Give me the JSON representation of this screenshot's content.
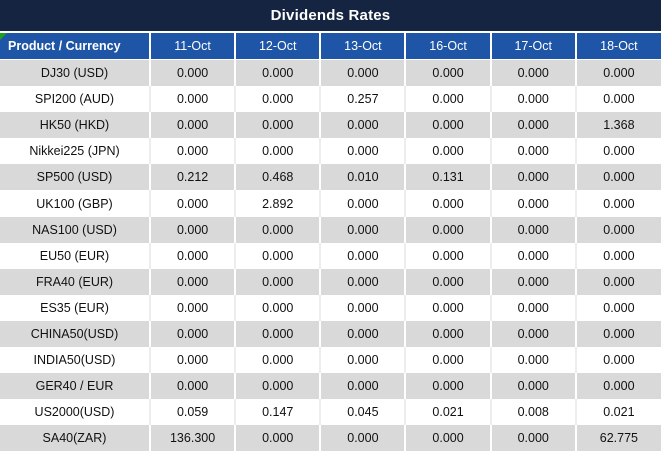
{
  "title": "Dividends Rates",
  "icons": {
    "corner_marker": "green-corner-triangle"
  },
  "colors": {
    "title_bg": "#142441",
    "header_bg": "#1e55a6",
    "alt_row_bg": "#d9d9d9",
    "highlight_red": "#f40000",
    "marker_green": "#1fa11f"
  },
  "table": {
    "header": [
      "Product / Currency",
      "11-Oct",
      "12-Oct",
      "13-Oct",
      "16-Oct",
      "17-Oct",
      "18-Oct"
    ],
    "rows": [
      {
        "product": "DJ30 (USD)",
        "values": [
          "0.000",
          "0.000",
          "0.000",
          "0.000",
          "0.000",
          "0.000"
        ],
        "red": [
          false,
          false,
          false,
          false,
          false,
          false
        ]
      },
      {
        "product": "SPI200 (AUD)",
        "values": [
          "0.000",
          "0.000",
          "0.257",
          "0.000",
          "0.000",
          "0.000"
        ],
        "red": [
          false,
          false,
          true,
          false,
          false,
          false
        ]
      },
      {
        "product": "HK50 (HKD)",
        "values": [
          "0.000",
          "0.000",
          "0.000",
          "0.000",
          "0.000",
          "1.368"
        ],
        "red": [
          false,
          false,
          false,
          false,
          false,
          true
        ]
      },
      {
        "product": "Nikkei225 (JPN)",
        "values": [
          "0.000",
          "0.000",
          "0.000",
          "0.000",
          "0.000",
          "0.000"
        ],
        "red": [
          false,
          false,
          false,
          false,
          false,
          false
        ]
      },
      {
        "product": "SP500 (USD)",
        "values": [
          "0.212",
          "0.468",
          "0.010",
          "0.131",
          "0.000",
          "0.000"
        ],
        "red": [
          true,
          true,
          true,
          true,
          false,
          false
        ]
      },
      {
        "product": "UK100 (GBP)",
        "values": [
          "0.000",
          "2.892",
          "0.000",
          "0.000",
          "0.000",
          "0.000"
        ],
        "red": [
          false,
          true,
          false,
          false,
          false,
          false
        ]
      },
      {
        "product": "NAS100 (USD)",
        "values": [
          "0.000",
          "0.000",
          "0.000",
          "0.000",
          "0.000",
          "0.000"
        ],
        "red": [
          false,
          false,
          false,
          false,
          false,
          false
        ]
      },
      {
        "product": "EU50 (EUR)",
        "values": [
          "0.000",
          "0.000",
          "0.000",
          "0.000",
          "0.000",
          "0.000"
        ],
        "red": [
          false,
          false,
          false,
          false,
          false,
          false
        ]
      },
      {
        "product": "FRA40 (EUR)",
        "values": [
          "0.000",
          "0.000",
          "0.000",
          "0.000",
          "0.000",
          "0.000"
        ],
        "red": [
          false,
          false,
          false,
          false,
          false,
          false
        ]
      },
      {
        "product": "ES35 (EUR)",
        "values": [
          "0.000",
          "0.000",
          "0.000",
          "0.000",
          "0.000",
          "0.000"
        ],
        "red": [
          false,
          false,
          false,
          false,
          false,
          false
        ]
      },
      {
        "product": "CHINA50(USD)",
        "values": [
          "0.000",
          "0.000",
          "0.000",
          "0.000",
          "0.000",
          "0.000"
        ],
        "red": [
          false,
          false,
          false,
          false,
          false,
          false
        ]
      },
      {
        "product": "INDIA50(USD)",
        "values": [
          "0.000",
          "0.000",
          "0.000",
          "0.000",
          "0.000",
          "0.000"
        ],
        "red": [
          false,
          false,
          false,
          false,
          false,
          false
        ]
      },
      {
        "product": "GER40 / EUR",
        "values": [
          "0.000",
          "0.000",
          "0.000",
          "0.000",
          "0.000",
          "0.000"
        ],
        "red": [
          false,
          false,
          false,
          false,
          false,
          false
        ]
      },
      {
        "product": "US2000(USD)",
        "values": [
          "0.059",
          "0.147",
          "0.045",
          "0.021",
          "0.008",
          "0.021"
        ],
        "red": [
          true,
          true,
          true,
          true,
          true,
          true
        ]
      },
      {
        "product": "SA40(ZAR)",
        "values": [
          "136.300",
          "0.000",
          "0.000",
          "0.000",
          "0.000",
          "62.775"
        ],
        "red": [
          true,
          false,
          false,
          false,
          false,
          true
        ]
      }
    ]
  }
}
